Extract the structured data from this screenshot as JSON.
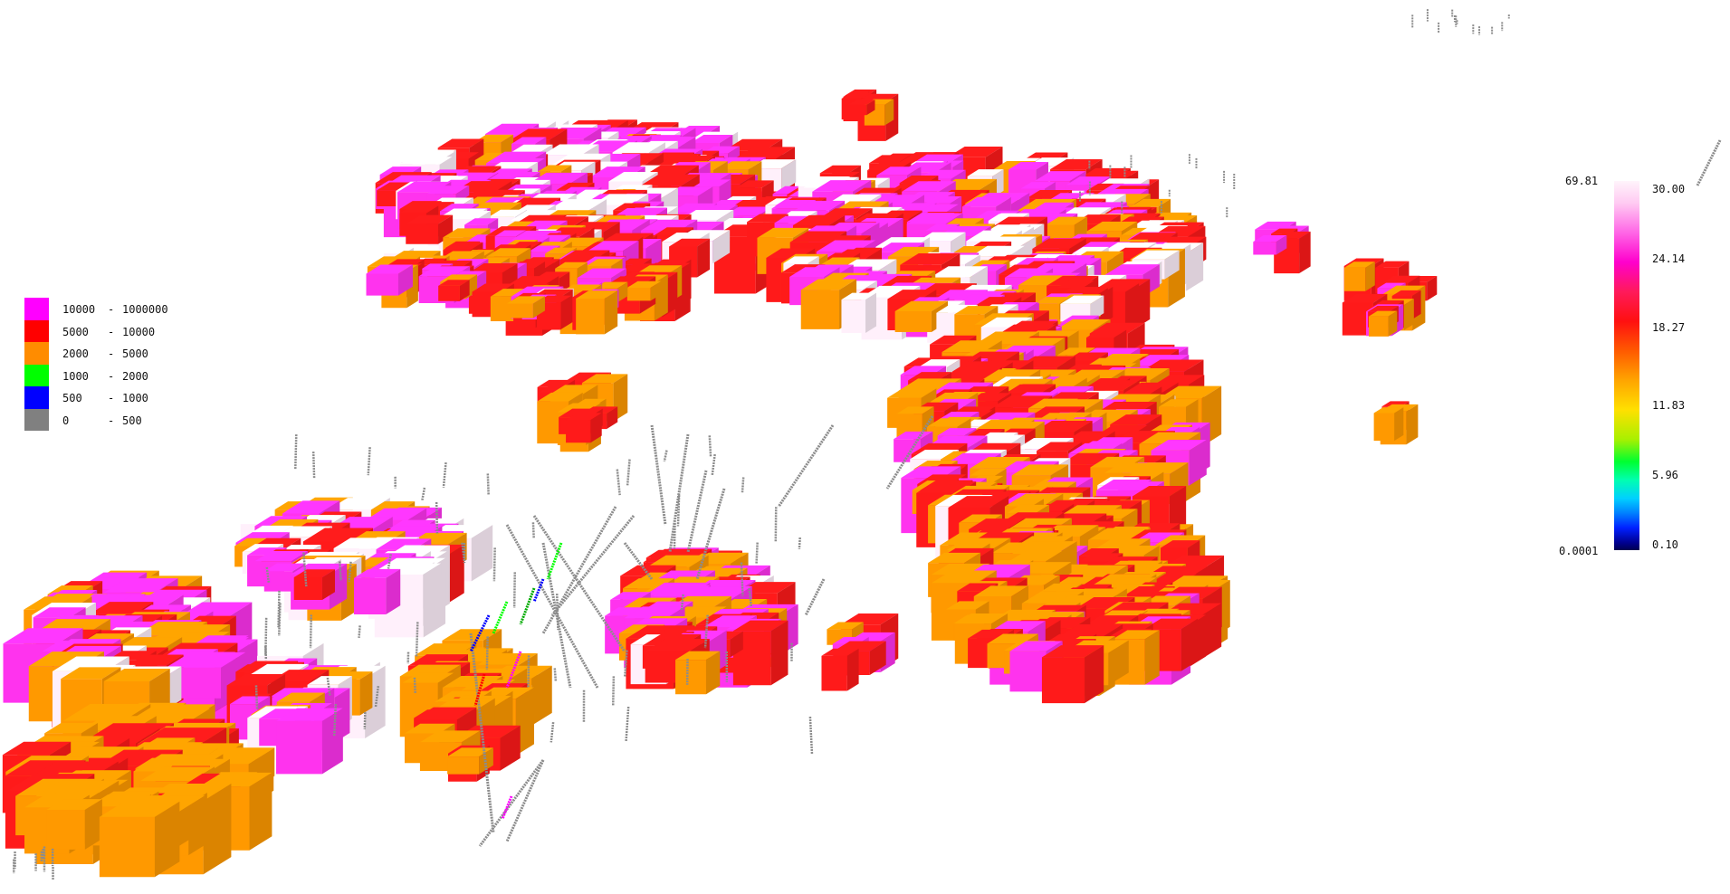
{
  "legend": {
    "items": [
      {
        "min": "10000",
        "max": "1000000",
        "color": "#ff00ff"
      },
      {
        "min": "5000",
        "max": "10000",
        "color": "#ff0000"
      },
      {
        "min": "2000",
        "max": "5000",
        "color": "#ff8c00"
      },
      {
        "min": "1000",
        "max": "2000",
        "color": "#00ff00"
      },
      {
        "min": "500",
        "max": "1000",
        "color": "#0000ff"
      },
      {
        "min": "0",
        "max": "500",
        "color": "#808080"
      }
    ]
  },
  "colorbar": {
    "max_value": "69.81",
    "min_value": "0.0001",
    "ticks": [
      "30.00",
      "24.14",
      "18.27",
      "11.83",
      "5.96",
      "0.10"
    ]
  },
  "colors": {
    "white_block": "#fff0fb",
    "pink_block": "#ff33ee",
    "red_block": "#ff1a1a",
    "orange_block": "#ff9900",
    "drill_trace": "#8c8c8c"
  }
}
